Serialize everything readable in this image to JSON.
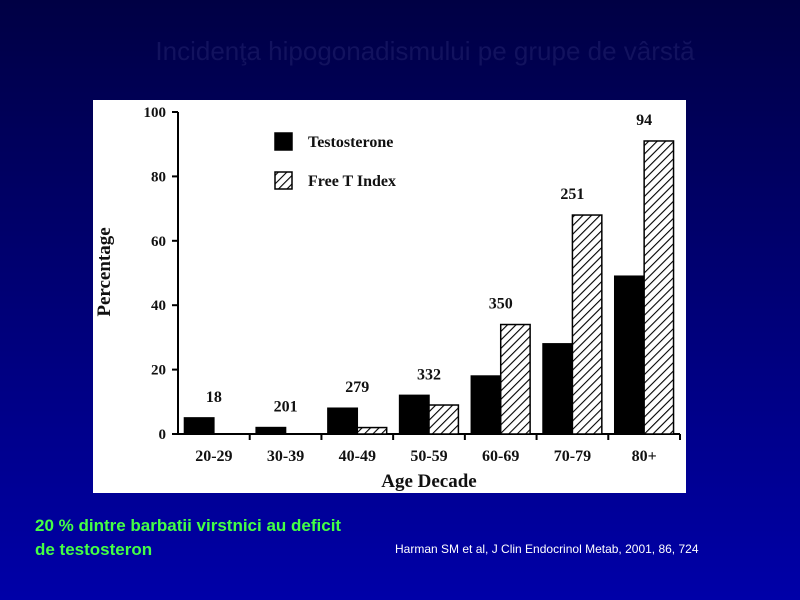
{
  "chart_data": {
    "type": "bar",
    "title": "Incidenţa hipogonadismului pe grupe de vârstă",
    "categories": [
      "20-29",
      "30-39",
      "40-49",
      "50-59",
      "60-69",
      "70-79",
      "80+"
    ],
    "series": [
      {
        "name": "Testosterone",
        "color": "#000000",
        "values": [
          5,
          2,
          8,
          12,
          18,
          28,
          49
        ]
      },
      {
        "name": "Free T Index",
        "color": "#000000",
        "pattern": "hatch",
        "values": [
          0,
          0,
          2,
          9,
          34,
          68,
          91
        ]
      }
    ],
    "group_sizes": [
      18,
      201,
      279,
      332,
      350,
      251,
      94
    ],
    "xlabel": "Age Decade",
    "ylabel": "Percentage",
    "ylim": [
      0,
      100
    ],
    "yticks": [
      0,
      20,
      40,
      60,
      80,
      100
    ],
    "legend": "upper left"
  },
  "caption": [
    "20 % dintre barbatii virstnici au deficit",
    "de testosteron"
  ],
  "source": "Harman  SM et al, J Clin Endocrinol Metab, 2001, 86,  724"
}
